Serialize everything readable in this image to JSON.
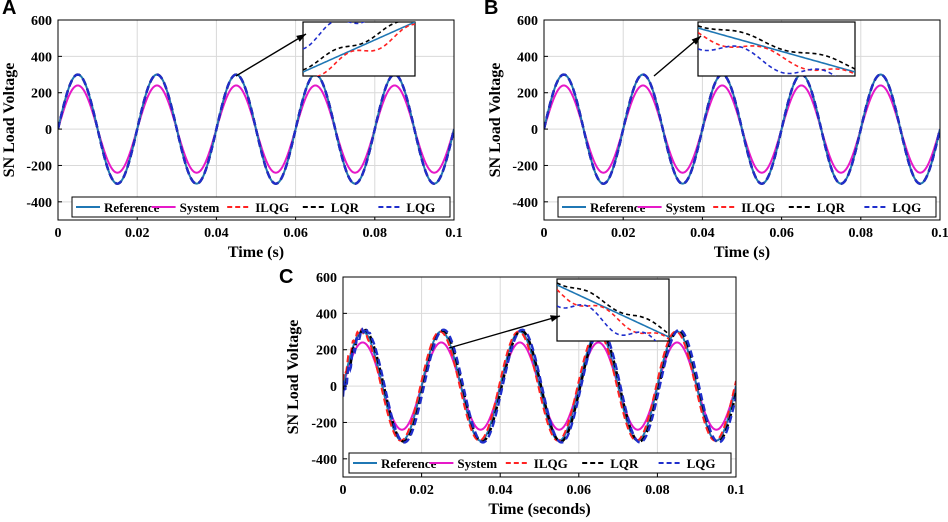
{
  "colors": {
    "Reference": "#1f77b4",
    "System": "#e619c8",
    "ILQG": "#ff2222",
    "LQR": "#000000",
    "LQG": "#1f2ecc"
  },
  "chart_data": [
    {
      "type": "line",
      "panel": "A",
      "xlabel": "Time (s)",
      "ylabel": "SN Load Voltage",
      "xlim": [
        0,
        0.1
      ],
      "ylim": [
        -500,
        600
      ],
      "xticks": [
        0,
        0.02,
        0.04,
        0.06,
        0.08,
        0.1
      ],
      "xtick_labels": [
        "0",
        "0.02",
        "0.04",
        "0.06",
        "0.08",
        "0.1"
      ],
      "yticks": [
        -400,
        -200,
        0,
        200,
        400,
        600
      ],
      "ytick_labels": [
        "-400",
        "-200",
        "0",
        "200",
        "400",
        "600"
      ],
      "grid": true,
      "legend": "bottom",
      "frequency_hz": 50,
      "series": [
        {
          "name": "Reference",
          "style": "solid",
          "amplitude": 300
        },
        {
          "name": "System",
          "style": "solid",
          "amplitude": 240
        },
        {
          "name": "ILQG",
          "style": "dashed",
          "amplitude": 300
        },
        {
          "name": "LQR",
          "style": "dashed",
          "amplitude": 300
        },
        {
          "name": "LQG",
          "style": "dashed",
          "amplitude": 300
        }
      ],
      "inset": true
    },
    {
      "type": "line",
      "panel": "B",
      "xlabel": "Time (s)",
      "ylabel": "SN Load Voltage",
      "xlim": [
        0,
        0.1
      ],
      "ylim": [
        -500,
        600
      ],
      "xticks": [
        0,
        0.02,
        0.04,
        0.06,
        0.08,
        0.1
      ],
      "xtick_labels": [
        "0",
        "0.02",
        "0.04",
        "0.06",
        "0.08",
        "0.1"
      ],
      "yticks": [
        -400,
        -200,
        0,
        200,
        400,
        600
      ],
      "ytick_labels": [
        "-400",
        "-200",
        "0",
        "200",
        "400",
        "600"
      ],
      "grid": true,
      "legend": "bottom",
      "frequency_hz": 50,
      "series": [
        {
          "name": "Reference",
          "style": "solid",
          "amplitude": 300
        },
        {
          "name": "System",
          "style": "solid",
          "amplitude": 240
        },
        {
          "name": "ILQG",
          "style": "dashed",
          "amplitude": 300
        },
        {
          "name": "LQR",
          "style": "dashed",
          "amplitude": 300
        },
        {
          "name": "LQG",
          "style": "dashed",
          "amplitude": 300
        }
      ],
      "inset": true
    },
    {
      "type": "line",
      "panel": "C",
      "xlabel": "Time (seconds)",
      "ylabel": "SN Load Voltage",
      "xlim": [
        0,
        0.1
      ],
      "ylim": [
        -500,
        600
      ],
      "xticks": [
        0,
        0.02,
        0.04,
        0.06,
        0.08,
        0.1
      ],
      "xtick_labels": [
        "0",
        "0.02",
        "0.04",
        "0.06",
        "0.08",
        "0.1"
      ],
      "yticks": [
        -400,
        -200,
        0,
        200,
        400,
        600
      ],
      "ytick_labels": [
        "-400",
        "-200",
        "0",
        "200",
        "400",
        "600"
      ],
      "grid": true,
      "legend": "bottom",
      "frequency_hz": 50,
      "series": [
        {
          "name": "Reference",
          "style": "solid",
          "amplitude": 300
        },
        {
          "name": "System",
          "style": "solid",
          "amplitude": 240
        },
        {
          "name": "ILQG",
          "style": "dashed",
          "amplitude": 300
        },
        {
          "name": "LQR",
          "style": "dashed",
          "amplitude": 305
        },
        {
          "name": "LQG",
          "style": "dashed",
          "amplitude": 310
        }
      ],
      "inset": true
    }
  ]
}
